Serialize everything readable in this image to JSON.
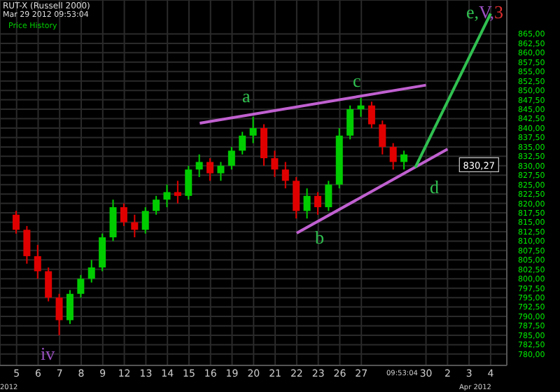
{
  "chart_data": {
    "type": "candlestick",
    "title": "RUT-X (Russell 2000)",
    "subtitle": "Mar 29 2012 09:53:04",
    "categories": [
      "5",
      null,
      "6",
      null,
      "7",
      null,
      "8",
      null,
      "9",
      null,
      "12",
      null,
      "13",
      null,
      "14",
      null,
      "15",
      null,
      "16",
      null,
      "19",
      null,
      "20",
      null,
      "21",
      null,
      "22",
      null,
      "23",
      null,
      "26",
      null,
      "27",
      null,
      null,
      null,
      null,
      null,
      "30",
      null,
      "2",
      null,
      "3",
      null,
      "4",
      null
    ],
    "series": [
      {
        "name": "Price History",
        "type": "candlestick",
        "color": "#00cc00",
        "colors": [
          "#e00000",
          "#e00000",
          "#e00000",
          "#e00000",
          "#e00000",
          "#00cc00",
          "#00cc00",
          "#00cc00",
          "#00cc00",
          "#00cc00",
          "#e00000",
          "#e00000",
          "#00cc00",
          "#00cc00",
          "#00cc00",
          "#e00000",
          "#00cc00",
          "#00cc00",
          "#e00000",
          "#00cc00",
          "#00cc00",
          "#00cc00",
          "#00cc00",
          "#e00000",
          "#e00000",
          "#e00000",
          "#e00000",
          "#00cc00",
          "#e00000",
          "#00cc00",
          "#00cc00",
          "#00cc00",
          "#00cc00",
          "#e00000",
          "#e00000",
          "#e00000",
          "#00cc00",
          null,
          null,
          null,
          null,
          null,
          null,
          null,
          null,
          null
        ],
        "ohlc": [
          [
            817,
            818,
            812,
            813
          ],
          [
            813,
            814,
            804,
            806
          ],
          [
            806,
            809,
            800,
            802
          ],
          [
            802,
            803,
            794,
            795
          ],
          [
            795,
            796,
            785,
            789
          ],
          [
            789,
            797,
            788,
            796
          ],
          [
            796,
            801,
            795,
            800
          ],
          [
            800,
            805,
            799,
            803
          ],
          [
            803,
            812,
            802,
            811
          ],
          [
            811,
            821,
            810,
            819
          ],
          [
            819,
            820,
            814,
            815
          ],
          [
            815,
            817,
            811,
            813
          ],
          [
            813,
            819,
            812,
            818
          ],
          [
            818,
            822,
            817,
            821
          ],
          [
            821,
            825,
            819,
            823
          ],
          [
            823,
            826,
            820,
            822
          ],
          [
            822,
            830,
            821,
            829
          ],
          [
            829,
            833,
            827,
            831
          ],
          [
            831,
            832,
            826,
            828
          ],
          [
            828,
            831,
            826,
            830
          ],
          [
            830,
            835,
            829,
            834
          ],
          [
            834,
            839,
            833,
            838
          ],
          [
            838,
            843,
            836,
            840
          ],
          [
            840,
            841,
            830,
            832
          ],
          [
            832,
            834,
            827,
            829
          ],
          [
            829,
            831,
            824,
            826
          ],
          [
            826,
            827,
            816,
            818
          ],
          [
            818,
            824,
            816,
            822
          ],
          [
            822,
            823,
            817,
            819
          ],
          [
            819,
            826,
            818,
            825
          ],
          [
            825,
            840,
            824,
            838
          ],
          [
            838,
            846,
            837,
            845
          ],
          [
            845,
            848,
            843,
            846
          ],
          [
            846,
            847,
            840,
            841
          ],
          [
            841,
            842,
            833,
            835
          ],
          [
            835,
            836,
            829,
            831
          ],
          [
            831,
            834,
            829,
            833
          ],
          null,
          null,
          null,
          null,
          null,
          null,
          null,
          null,
          null
        ]
      },
      {
        "type": "line",
        "color": "#c060d0",
        "values": [
          null,
          null,
          null,
          null,
          null,
          null,
          null,
          null,
          null,
          null,
          null,
          null,
          null,
          null,
          null,
          null,
          null,
          841.3,
          null,
          null,
          null,
          null,
          null,
          null,
          null,
          null,
          null,
          null,
          null,
          null,
          null,
          null,
          null,
          null,
          null,
          null,
          null,
          null,
          851.4,
          null,
          null,
          null,
          null,
          null,
          null,
          null
        ]
      },
      {
        "type": "line",
        "color": "#c060d0",
        "values": [
          null,
          null,
          null,
          null,
          null,
          null,
          null,
          null,
          null,
          null,
          null,
          null,
          null,
          null,
          null,
          null,
          null,
          null,
          null,
          null,
          null,
          null,
          null,
          null,
          null,
          null,
          812.1,
          null,
          null,
          null,
          null,
          null,
          null,
          null,
          null,
          null,
          null,
          null,
          null,
          null,
          834.4,
          null,
          null,
          null,
          null,
          null
        ]
      },
      {
        "type": "line",
        "color": "#30c050",
        "values": [
          null,
          null,
          null,
          null,
          null,
          null,
          null,
          null,
          null,
          null,
          null,
          null,
          null,
          null,
          null,
          null,
          null,
          null,
          null,
          null,
          null,
          null,
          null,
          null,
          null,
          null,
          null,
          null,
          null,
          null,
          null,
          null,
          null,
          null,
          null,
          null,
          null,
          829.5,
          null,
          null,
          null,
          null,
          null,
          null,
          870.4,
          null
        ]
      }
    ],
    "ylim": [
      777,
      874
    ],
    "yticks": [
      {
        "value": 780,
        "label": "780,00"
      },
      {
        "value": 782.5,
        "label": "782,50"
      },
      {
        "value": 785,
        "label": "785,00"
      },
      {
        "value": 787.5,
        "label": "787,50"
      },
      {
        "value": 790,
        "label": "790,00"
      },
      {
        "value": 792.5,
        "label": "792,50"
      },
      {
        "value": 795,
        "label": "795,00"
      },
      {
        "value": 797.5,
        "label": "797,50"
      },
      {
        "value": 800,
        "label": "800,00"
      },
      {
        "value": 802.5,
        "label": "802,50"
      },
      {
        "value": 805,
        "label": "805,00"
      },
      {
        "value": 807.5,
        "label": "807,50"
      },
      {
        "value": 810,
        "label": "810,00"
      },
      {
        "value": 812.5,
        "label": "812,50"
      },
      {
        "value": 815,
        "label": "815,00"
      },
      {
        "value": 817.5,
        "label": "817,50"
      },
      {
        "value": 820,
        "label": "820,00"
      },
      {
        "value": 822.5,
        "label": "822,50"
      },
      {
        "value": 825,
        "label": "825,00"
      },
      {
        "value": 827.5,
        "label": "827,50"
      },
      {
        "value": 830,
        "label": "830,00"
      },
      {
        "value": 832.5,
        "label": "832,50"
      },
      {
        "value": 835,
        "label": "835,00"
      },
      {
        "value": 837.5,
        "label": "837,50"
      },
      {
        "value": 840,
        "label": "840,00"
      },
      {
        "value": 842.5,
        "label": "842,50"
      },
      {
        "value": 845,
        "label": "845,00"
      },
      {
        "value": 847.5,
        "label": "847,50"
      },
      {
        "value": 850,
        "label": "850,00"
      },
      {
        "value": 852.5,
        "label": "852,50"
      },
      {
        "value": 855,
        "label": "855,00"
      },
      {
        "value": 857.5,
        "label": "857,50"
      },
      {
        "value": 860,
        "label": "860,00"
      },
      {
        "value": 862.5,
        "label": "862,50"
      },
      {
        "value": 865,
        "label": "865,00"
      }
    ],
    "annotations": [
      "a",
      "b",
      "c",
      "d",
      "iv",
      "e,V,3",
      {
        "text": "830,27",
        "y": 830.27
      },
      "09:53:04",
      "Apr 2012",
      "2012"
    ],
    "grid": true,
    "legend": "top left"
  }
}
